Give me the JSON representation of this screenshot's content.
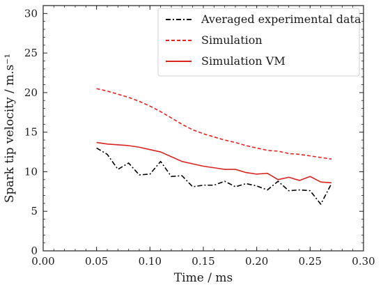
{
  "chart_data": {
    "type": "line",
    "xlabel": "Time / ms",
    "ylabel": "Spark tip velocity / m.s⁻¹",
    "xlim": [
      0.0,
      0.3
    ],
    "ylim": [
      0,
      31
    ],
    "x_ticks": [
      "0.00",
      "0.05",
      "0.10",
      "0.15",
      "0.20",
      "0.25",
      "0.30"
    ],
    "y_ticks": [
      "0",
      "5",
      "10",
      "15",
      "20",
      "25",
      "30"
    ],
    "grid": false,
    "legend_position": "top-right",
    "series": [
      {
        "name": "Averaged experimental data",
        "color": "#000000",
        "style": "dashdot",
        "x": [
          0.05,
          0.06,
          0.07,
          0.08,
          0.09,
          0.1,
          0.11,
          0.12,
          0.13,
          0.14,
          0.15,
          0.16,
          0.17,
          0.18,
          0.19,
          0.2,
          0.21,
          0.22,
          0.23,
          0.24,
          0.25,
          0.26,
          0.27
        ],
        "y": [
          13.0,
          12.2,
          10.3,
          11.1,
          9.6,
          9.7,
          11.3,
          9.4,
          9.5,
          8.1,
          8.3,
          8.3,
          8.8,
          8.1,
          8.5,
          8.2,
          7.7,
          8.8,
          7.6,
          7.7,
          7.6,
          5.9,
          8.5
        ]
      },
      {
        "name": "Simulation",
        "color": "#e8201e",
        "style": "dashed",
        "x": [
          0.05,
          0.06,
          0.07,
          0.08,
          0.09,
          0.1,
          0.11,
          0.12,
          0.13,
          0.14,
          0.15,
          0.16,
          0.17,
          0.18,
          0.19,
          0.2,
          0.21,
          0.22,
          0.23,
          0.24,
          0.25,
          0.26,
          0.27
        ],
        "y": [
          20.5,
          20.2,
          19.8,
          19.4,
          18.9,
          18.3,
          17.6,
          16.8,
          16.0,
          15.3,
          14.8,
          14.4,
          14.0,
          13.7,
          13.3,
          13.0,
          12.7,
          12.6,
          12.3,
          12.2,
          12.0,
          11.8,
          11.6
        ]
      },
      {
        "name": "Simulation VM",
        "color": "#d9231f",
        "style": "solid",
        "x": [
          0.05,
          0.06,
          0.07,
          0.08,
          0.09,
          0.1,
          0.11,
          0.12,
          0.13,
          0.14,
          0.15,
          0.16,
          0.17,
          0.18,
          0.19,
          0.2,
          0.21,
          0.22,
          0.23,
          0.24,
          0.25,
          0.26,
          0.27
        ],
        "y": [
          13.7,
          13.5,
          13.4,
          13.3,
          13.1,
          12.8,
          12.5,
          11.9,
          11.3,
          11.0,
          10.7,
          10.5,
          10.3,
          10.3,
          9.9,
          9.7,
          9.8,
          9.0,
          9.3,
          8.9,
          9.4,
          8.7,
          8.6
        ]
      }
    ]
  }
}
